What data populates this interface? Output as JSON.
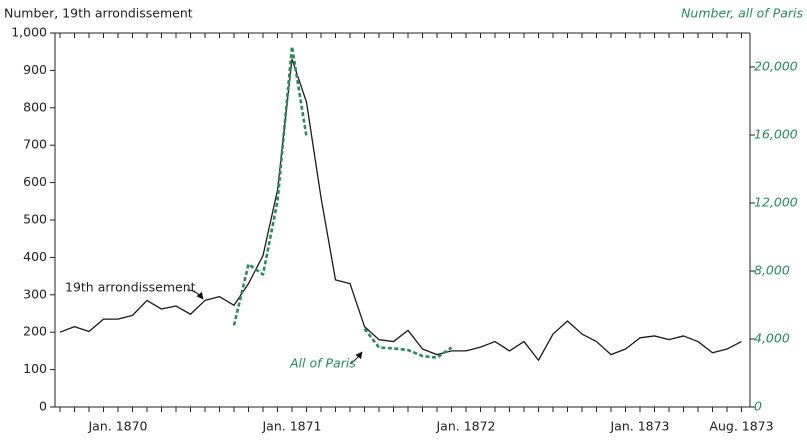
{
  "chart_data": {
    "type": "line",
    "ylabel": "Number, 19th arrondissement",
    "y2label": "Number, all of Paris",
    "categories": [
      null,
      null,
      null,
      null,
      "Jan. 1870",
      null,
      null,
      null,
      null,
      null,
      null,
      null,
      null,
      null,
      null,
      null,
      "Jan. 1871",
      null,
      null,
      null,
      null,
      null,
      null,
      null,
      null,
      null,
      null,
      null,
      "Jan. 1872",
      null,
      null,
      null,
      null,
      null,
      null,
      null,
      null,
      null,
      null,
      null,
      "Jan. 1873",
      null,
      null,
      null,
      null,
      null,
      null,
      "Aug. 1873"
    ],
    "series": [
      {
        "name": "19th arrondissement",
        "color": "#1a1a1a",
        "axis": "y",
        "values": [
          200,
          215,
          202,
          235,
          235,
          245,
          285,
          262,
          270,
          248,
          285,
          295,
          272,
          330,
          405,
          580,
          930,
          815,
          560,
          340,
          330,
          215,
          180,
          175,
          205,
          155,
          140,
          150,
          150,
          160,
          175,
          150,
          175,
          125,
          195,
          230,
          195,
          175,
          140,
          155,
          185,
          190,
          180,
          190,
          175,
          145,
          155,
          175
        ]
      },
      {
        "name": "All of Paris",
        "color": "#2a8a5a",
        "axis": "y2",
        "values": [
          null,
          null,
          null,
          null,
          null,
          null,
          null,
          null,
          null,
          null,
          null,
          null,
          4800,
          8400,
          7800,
          12100,
          21200,
          15900,
          null,
          null,
          null,
          4600,
          3500,
          3450,
          3350,
          3000,
          2900,
          3500,
          null,
          null,
          null,
          null,
          null,
          null,
          null,
          null,
          null,
          null,
          null,
          null,
          null,
          null,
          null,
          null,
          null,
          null,
          null,
          null
        ]
      }
    ],
    "ylim": [
      0,
      1000
    ],
    "yticks": [
      0,
      100,
      200,
      300,
      400,
      500,
      600,
      700,
      800,
      900,
      {
        "value": 1000,
        "label": "1,000"
      }
    ],
    "y2lim": [
      0,
      22000
    ],
    "y2ticks": [
      0,
      {
        "value": 4000,
        "label": "4,000"
      },
      {
        "value": 8000,
        "label": "8,000"
      },
      {
        "value": 12000,
        "label": "12,000"
      },
      {
        "value": 16000,
        "label": "16,000"
      },
      {
        "value": 20000,
        "label": "20,000"
      }
    ],
    "grid": false
  }
}
